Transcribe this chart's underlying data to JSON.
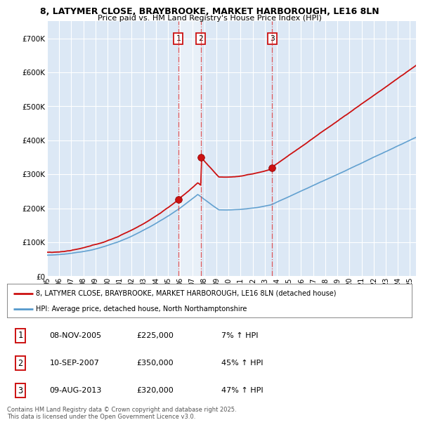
{
  "title1": "8, LATYMER CLOSE, BRAYBROOKE, MARKET HARBOROUGH, LE16 8LN",
  "title2": "Price paid vs. HM Land Registry's House Price Index (HPI)",
  "background_color": "#ffffff",
  "plot_bg_color": "#dce8f5",
  "grid_color": "#ffffff",
  "shade_color": "#c8dff0",
  "ylim": [
    0,
    750000
  ],
  "yticks": [
    0,
    100000,
    200000,
    300000,
    400000,
    500000,
    600000,
    700000
  ],
  "ytick_labels": [
    "£0",
    "£100K",
    "£200K",
    "£300K",
    "£400K",
    "£500K",
    "£600K",
    "£700K"
  ],
  "sale_dates_num": [
    2005.84,
    2007.72,
    2013.6
  ],
  "sale_prices": [
    225000,
    350000,
    320000
  ],
  "sale_labels": [
    "1",
    "2",
    "3"
  ],
  "vline_color": "#dd3333",
  "vline_style": "-.",
  "legend_line1": "8, LATYMER CLOSE, BRAYBROOKE, MARKET HARBOROUGH, LE16 8LN (detached house)",
  "legend_line2": "HPI: Average price, detached house, North Northamptonshire",
  "table_rows": [
    [
      "1",
      "08-NOV-2005",
      "£225,000",
      "7% ↑ HPI"
    ],
    [
      "2",
      "10-SEP-2007",
      "£350,000",
      "45% ↑ HPI"
    ],
    [
      "3",
      "09-AUG-2013",
      "£320,000",
      "47% ↑ HPI"
    ]
  ],
  "footnote": "Contains HM Land Registry data © Crown copyright and database right 2025.\nThis data is licensed under the Open Government Licence v3.0.",
  "red_line_color": "#cc1111",
  "blue_line_color": "#5599cc",
  "xmin": 1995.0,
  "xmax": 2025.5
}
